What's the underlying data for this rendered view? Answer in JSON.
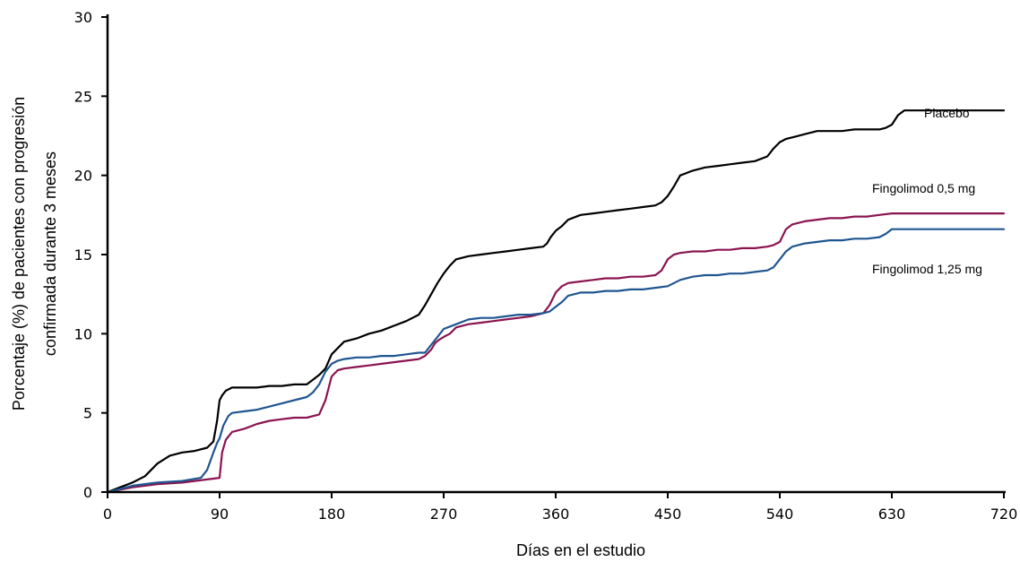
{
  "chart_data": {
    "type": "line",
    "xlabel": "Días en el estudio",
    "ylabel_line1": "Porcentaje (%) de pacientes con progresión",
    "ylabel_line2": "confirmada durante 3 meses",
    "xlim": [
      0,
      720
    ],
    "ylim": [
      0,
      30
    ],
    "xticks": [
      0,
      90,
      180,
      270,
      360,
      450,
      540,
      630,
      720
    ],
    "yticks": [
      0,
      5,
      10,
      15,
      20,
      25,
      30
    ],
    "grid": false,
    "legend": "inline labels at right",
    "series": [
      {
        "name": "Placebo",
        "color": "#000000",
        "x": [
          0,
          10,
          20,
          30,
          40,
          50,
          60,
          70,
          80,
          85,
          88,
          90,
          92,
          95,
          100,
          110,
          120,
          130,
          140,
          150,
          160,
          165,
          170,
          175,
          180,
          190,
          200,
          210,
          220,
          230,
          240,
          250,
          255,
          260,
          265,
          270,
          275,
          280,
          290,
          300,
          310,
          320,
          330,
          340,
          350,
          353,
          356,
          360,
          365,
          370,
          380,
          390,
          400,
          410,
          420,
          430,
          440,
          445,
          450,
          455,
          460,
          470,
          480,
          490,
          500,
          510,
          520,
          530,
          535,
          540,
          545,
          550,
          560,
          570,
          580,
          590,
          600,
          610,
          620,
          625,
          630,
          635,
          640,
          650,
          660,
          680,
          700,
          720
        ],
        "y": [
          0,
          0.3,
          0.6,
          1.0,
          1.8,
          2.3,
          2.5,
          2.6,
          2.8,
          3.2,
          4.5,
          5.8,
          6.1,
          6.4,
          6.6,
          6.6,
          6.6,
          6.7,
          6.7,
          6.8,
          6.8,
          7.1,
          7.4,
          7.8,
          8.7,
          9.5,
          9.7,
          10.0,
          10.2,
          10.5,
          10.8,
          11.2,
          11.8,
          12.5,
          13.2,
          13.8,
          14.3,
          14.7,
          14.9,
          15.0,
          15.1,
          15.2,
          15.3,
          15.4,
          15.5,
          15.7,
          16.1,
          16.5,
          16.8,
          17.2,
          17.5,
          17.6,
          17.7,
          17.8,
          17.9,
          18.0,
          18.1,
          18.3,
          18.7,
          19.3,
          20.0,
          20.3,
          20.5,
          20.6,
          20.7,
          20.8,
          20.9,
          21.2,
          21.7,
          22.1,
          22.3,
          22.4,
          22.6,
          22.8,
          22.8,
          22.8,
          22.9,
          22.9,
          22.9,
          23.0,
          23.2,
          23.8,
          24.1,
          24.1,
          24.1,
          24.1,
          24.1,
          24.1
        ]
      },
      {
        "name": "Fingolimod 0,5 mg",
        "color": "#8b1450",
        "x": [
          0,
          20,
          40,
          60,
          80,
          90,
          92,
          95,
          100,
          110,
          120,
          130,
          140,
          150,
          160,
          170,
          175,
          180,
          185,
          190,
          200,
          210,
          220,
          230,
          240,
          250,
          255,
          260,
          263,
          266,
          270,
          275,
          280,
          290,
          300,
          310,
          320,
          330,
          340,
          350,
          355,
          360,
          365,
          370,
          380,
          390,
          400,
          410,
          420,
          430,
          440,
          445,
          450,
          455,
          460,
          470,
          480,
          490,
          500,
          510,
          520,
          530,
          535,
          540,
          545,
          550,
          560,
          570,
          580,
          590,
          600,
          610,
          620,
          630,
          640,
          660,
          680,
          700,
          720
        ],
        "y": [
          0,
          0.3,
          0.5,
          0.6,
          0.8,
          0.9,
          2.5,
          3.3,
          3.8,
          4.0,
          4.3,
          4.5,
          4.6,
          4.7,
          4.7,
          4.9,
          5.8,
          7.3,
          7.7,
          7.8,
          7.9,
          8.0,
          8.1,
          8.2,
          8.3,
          8.4,
          8.6,
          9.0,
          9.4,
          9.6,
          9.8,
          10.0,
          10.4,
          10.6,
          10.7,
          10.8,
          10.9,
          11.0,
          11.1,
          11.3,
          11.8,
          12.6,
          13.0,
          13.2,
          13.3,
          13.4,
          13.5,
          13.5,
          13.6,
          13.6,
          13.7,
          14.0,
          14.7,
          15.0,
          15.1,
          15.2,
          15.2,
          15.3,
          15.3,
          15.4,
          15.4,
          15.5,
          15.6,
          15.8,
          16.6,
          16.9,
          17.1,
          17.2,
          17.3,
          17.3,
          17.4,
          17.4,
          17.5,
          17.6,
          17.6,
          17.6,
          17.6,
          17.6,
          17.6
        ]
      },
      {
        "name": "Fingolimod 1,25 mg",
        "color": "#1f5690",
        "x": [
          0,
          20,
          40,
          60,
          75,
          80,
          85,
          88,
          90,
          93,
          97,
          100,
          110,
          120,
          130,
          140,
          150,
          160,
          165,
          170,
          175,
          180,
          185,
          190,
          200,
          210,
          220,
          230,
          240,
          250,
          255,
          260,
          265,
          270,
          280,
          290,
          300,
          310,
          320,
          330,
          340,
          350,
          355,
          360,
          365,
          370,
          380,
          390,
          400,
          410,
          420,
          430,
          440,
          450,
          455,
          460,
          470,
          480,
          490,
          500,
          510,
          520,
          530,
          535,
          540,
          545,
          550,
          560,
          570,
          580,
          590,
          600,
          610,
          620,
          625,
          630,
          640,
          660,
          680,
          700,
          720
        ],
        "y": [
          0,
          0.4,
          0.6,
          0.7,
          0.9,
          1.4,
          2.5,
          3.1,
          3.4,
          4.2,
          4.8,
          5.0,
          5.1,
          5.2,
          5.4,
          5.6,
          5.8,
          6.0,
          6.3,
          6.8,
          7.6,
          8.1,
          8.3,
          8.4,
          8.5,
          8.5,
          8.6,
          8.6,
          8.7,
          8.8,
          8.8,
          9.3,
          9.8,
          10.3,
          10.6,
          10.9,
          11.0,
          11.0,
          11.1,
          11.2,
          11.2,
          11.3,
          11.4,
          11.7,
          12.0,
          12.4,
          12.6,
          12.6,
          12.7,
          12.7,
          12.8,
          12.8,
          12.9,
          13.0,
          13.2,
          13.4,
          13.6,
          13.7,
          13.7,
          13.8,
          13.8,
          13.9,
          14.0,
          14.2,
          14.7,
          15.2,
          15.5,
          15.7,
          15.8,
          15.9,
          15.9,
          16.0,
          16.0,
          16.1,
          16.3,
          16.6,
          16.6,
          16.6,
          16.6,
          16.6,
          16.6
        ]
      }
    ]
  }
}
